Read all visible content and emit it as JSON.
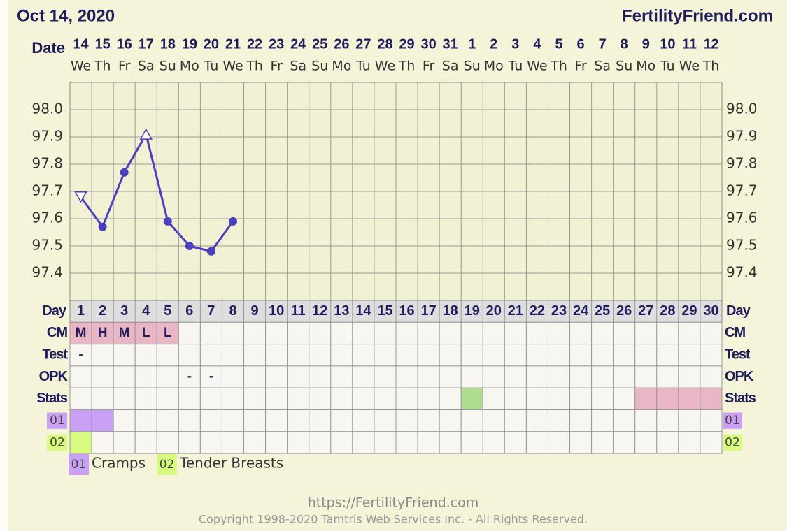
{
  "header": {
    "date": "Oct 14, 2020",
    "site": "FertilityFriend.com"
  },
  "chart_data": {
    "type": "line",
    "date_label": "Date",
    "dates": [
      14,
      15,
      16,
      17,
      18,
      19,
      20,
      21,
      22,
      23,
      24,
      25,
      26,
      27,
      28,
      29,
      30,
      31,
      1,
      2,
      3,
      4,
      5,
      6,
      7,
      8,
      9,
      10,
      11,
      12
    ],
    "weekdays": [
      "We",
      "Th",
      "Fr",
      "Sa",
      "Su",
      "Mo",
      "Tu",
      "We",
      "Th",
      "Fr",
      "Sa",
      "Su",
      "Mo",
      "Tu",
      "We",
      "Th",
      "Fr",
      "Sa",
      "Su",
      "Mo",
      "Tu",
      "We",
      "Th",
      "Fr",
      "Sa",
      "Su",
      "Mo",
      "Tu",
      "We",
      "Th"
    ],
    "day_label": "Day",
    "categories": [
      1,
      2,
      3,
      4,
      5,
      6,
      7,
      8,
      9,
      10,
      11,
      12,
      13,
      14,
      15,
      16,
      17,
      18,
      19,
      20,
      21,
      22,
      23,
      24,
      25,
      26,
      27,
      28,
      29,
      30
    ],
    "values": [
      97.68,
      97.57,
      97.77,
      97.91,
      97.59,
      97.5,
      97.48,
      97.59,
      null,
      null,
      null,
      null,
      null,
      null,
      null,
      null,
      null,
      null,
      null,
      null,
      null,
      null,
      null,
      null,
      null,
      null,
      null,
      null,
      null,
      null
    ],
    "markers": [
      "triangle-down",
      "circle",
      "circle",
      "triangle-up",
      "circle",
      "circle",
      "circle",
      "circle",
      null,
      null,
      null,
      null,
      null,
      null,
      null,
      null,
      null,
      null,
      null,
      null,
      null,
      null,
      null,
      null,
      null,
      null,
      null,
      null,
      null,
      null
    ],
    "color": "#4a40bd",
    "ylim": [
      97.3,
      98.1
    ],
    "yticks": [
      97.4,
      97.5,
      97.6,
      97.7,
      97.8,
      97.9,
      {
        "value": 98,
        "label": "98.0"
      }
    ],
    "grid": true
  },
  "rows": [
    {
      "label": "CM",
      "cells": [
        "M",
        "H",
        "M",
        "L",
        "L",
        null,
        null,
        null,
        null,
        null,
        null,
        null,
        null,
        null,
        null,
        null,
        null,
        null,
        null,
        null,
        null,
        null,
        null,
        null,
        null,
        null,
        null,
        null,
        null,
        null
      ],
      "fills": [
        "#e8b6c4",
        "#e8b6c4",
        "#e8b6c4",
        "#e8b6c4",
        "#e8b6c4",
        null,
        null,
        null,
        null,
        null,
        null,
        null,
        null,
        null,
        null,
        null,
        null,
        null,
        null,
        null,
        null,
        null,
        null,
        null,
        null,
        null,
        null,
        null,
        null,
        null
      ]
    },
    {
      "label": "Test",
      "cells": [
        "-",
        null,
        null,
        null,
        null,
        null,
        null,
        null,
        null,
        null,
        null,
        null,
        null,
        null,
        null,
        null,
        null,
        null,
        null,
        null,
        null,
        null,
        null,
        null,
        null,
        null,
        null,
        null,
        null,
        null
      ]
    },
    {
      "label": "OPK",
      "cells": [
        null,
        null,
        null,
        null,
        null,
        "-",
        "-",
        null,
        null,
        null,
        null,
        null,
        null,
        null,
        null,
        null,
        null,
        null,
        null,
        null,
        null,
        null,
        null,
        null,
        null,
        null,
        null,
        null,
        null,
        null
      ]
    },
    {
      "label": "Stats",
      "fills": [
        null,
        null,
        null,
        null,
        null,
        null,
        null,
        null,
        null,
        null,
        null,
        null,
        null,
        null,
        null,
        null,
        null,
        null,
        "#b0dc90",
        null,
        null,
        null,
        null,
        null,
        null,
        null,
        "#e8b6c4",
        "#e8b6c4",
        "#e8b6c4",
        "#e8b6c4"
      ]
    }
  ],
  "symptoms": [
    {
      "code": "01",
      "text": "Cramps",
      "color": "#c9a0f5",
      "days": [
        true,
        true,
        false,
        false,
        false,
        false,
        false,
        false,
        false,
        false,
        false,
        false,
        false,
        false,
        false,
        false,
        false,
        false,
        false,
        false,
        false,
        false,
        false,
        false,
        false,
        false,
        false,
        false,
        false,
        false
      ]
    },
    {
      "code": "02",
      "text": "Tender Breasts",
      "color": "#d8fa80",
      "days": [
        true,
        false,
        false,
        false,
        false,
        false,
        false,
        false,
        false,
        false,
        false,
        false,
        false,
        false,
        false,
        false,
        false,
        false,
        false,
        false,
        false,
        false,
        false,
        false,
        false,
        false,
        false,
        false,
        false,
        false
      ]
    }
  ],
  "footer": {
    "url": "https://FertilityFriend.com",
    "copyright": "Copyright 1998-2020 Tamtris Web Services Inc. - All Rights Reserved."
  }
}
